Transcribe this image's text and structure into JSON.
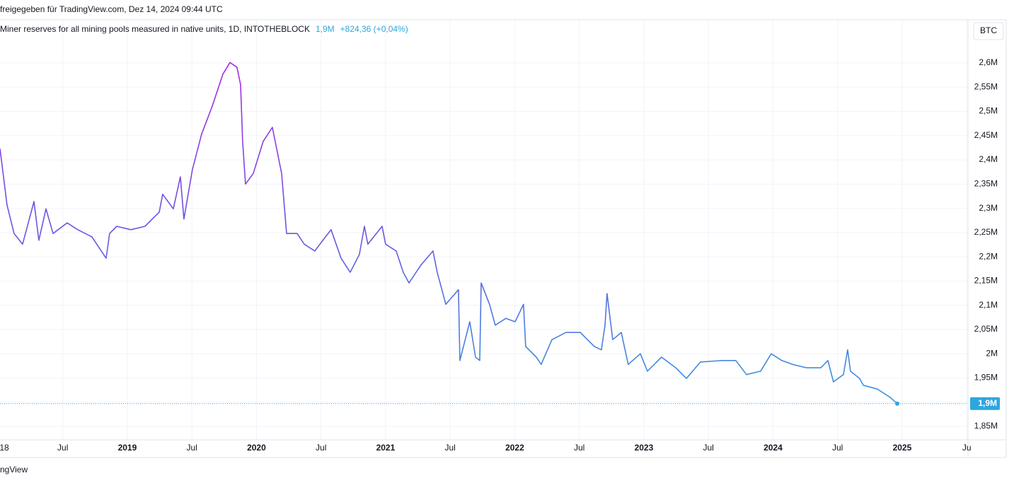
{
  "header": {
    "share_text": "freigegeben für TradingView.com, Dez 14, 2024 09:44 UTC",
    "currency": "BTC",
    "footer": "ngView"
  },
  "chart_data": {
    "type": "line",
    "title": "Miner reserves for all mining pools measured in native units, 1D, INTOTHEBLOCK",
    "last_value_text": "1,9M",
    "change_text": "+824,36 (+0,04%)",
    "last_value_label": "1,9M",
    "gradient_colors": [
      "#b51fe6",
      "#6b58e0",
      "#2ea6dc"
    ],
    "grid": true,
    "xlim": [
      2018.014,
      2025.51
    ],
    "xticks": [
      {
        "value": 2018,
        "label": "18"
      },
      {
        "value": 2018.5,
        "label": "Jul"
      },
      2019,
      {
        "value": 2019.5,
        "label": "Jul"
      },
      2020,
      {
        "value": 2020.5,
        "label": "Jul"
      },
      2021,
      {
        "value": 2021.5,
        "label": "Jul"
      },
      2022,
      {
        "value": 2022.5,
        "label": "Jul"
      },
      2023,
      {
        "value": 2023.5,
        "label": "Jul"
      },
      2024,
      {
        "value": 2024.5,
        "label": "Jul"
      },
      2025,
      {
        "value": 2025.5,
        "label": "Ju"
      }
    ],
    "ylim": [
      1822300,
      2689000
    ],
    "yticks": [
      {
        "value": 1850000,
        "label": "1,85M"
      },
      {
        "value": 1900000,
        "label": "1,9M"
      },
      {
        "value": 1950000,
        "label": "1,95M"
      },
      {
        "value": 2000000,
        "label": "2M"
      },
      {
        "value": 2050000,
        "label": "2,05M"
      },
      {
        "value": 2100000,
        "label": "2,1M"
      },
      {
        "value": 2150000,
        "label": "2,15M"
      },
      {
        "value": 2200000,
        "label": "2,2M"
      },
      {
        "value": 2250000,
        "label": "2,25M"
      },
      {
        "value": 2300000,
        "label": "2,3M"
      },
      {
        "value": 2350000,
        "label": "2,35M"
      },
      {
        "value": 2400000,
        "label": "2,4M"
      },
      {
        "value": 2450000,
        "label": "2,45M"
      },
      {
        "value": 2500000,
        "label": "2,5M"
      },
      {
        "value": 2550000,
        "label": "2,55M"
      },
      {
        "value": 2600000,
        "label": "2,6M"
      }
    ],
    "x": [
      2018.014,
      2018.068,
      2018.123,
      2018.189,
      2018.277,
      2018.315,
      2018.37,
      2018.425,
      2018.534,
      2018.616,
      2018.726,
      2018.836,
      2018.863,
      2018.918,
      2019.027,
      2019.137,
      2019.247,
      2019.274,
      2019.356,
      2019.411,
      2019.438,
      2019.504,
      2019.575,
      2019.658,
      2019.74,
      2019.795,
      2019.849,
      2019.877,
      2019.893,
      2019.915,
      2019.975,
      2020.052,
      2020.123,
      2020.195,
      2020.233,
      2020.315,
      2020.37,
      2020.452,
      2020.534,
      2020.578,
      2020.655,
      2020.726,
      2020.797,
      2020.836,
      2020.863,
      2020.973,
      2021.0,
      2021.082,
      2021.137,
      2021.181,
      2021.274,
      2021.367,
      2021.4,
      2021.466,
      2021.564,
      2021.575,
      2021.652,
      2021.696,
      2021.729,
      2021.74,
      2021.805,
      2021.849,
      2021.932,
      2022.003,
      2022.068,
      2022.085,
      2022.167,
      2022.205,
      2022.288,
      2022.397,
      2022.507,
      2022.616,
      2022.671,
      2022.699,
      2022.715,
      2022.759,
      2022.825,
      2022.879,
      2022.973,
      2023.027,
      2023.137,
      2023.247,
      2023.329,
      2023.438,
      2023.603,
      2023.712,
      2023.795,
      2023.904,
      2023.986,
      2024.068,
      2024.151,
      2024.26,
      2024.37,
      2024.425,
      2024.468,
      2024.545,
      2024.578,
      2024.6,
      2024.671,
      2024.699,
      2024.808,
      2024.907,
      2024.962
    ],
    "values": [
      2423000,
      2307000,
      2248000,
      2226000,
      2314000,
      2234000,
      2299000,
      2248000,
      2270000,
      2256000,
      2241000,
      2197000,
      2248000,
      2263000,
      2256000,
      2263000,
      2292000,
      2329000,
      2299000,
      2365000,
      2278000,
      2380000,
      2453000,
      2511000,
      2577000,
      2601000,
      2591000,
      2555000,
      2438000,
      2350000,
      2372000,
      2438000,
      2467000,
      2372000,
      2248000,
      2248000,
      2226000,
      2212000,
      2241000,
      2256000,
      2197000,
      2168000,
      2205000,
      2263000,
      2226000,
      2263000,
      2226000,
      2212000,
      2168000,
      2146000,
      2183000,
      2212000,
      2168000,
      2102000,
      2132000,
      1986000,
      2066000,
      1993000,
      1986000,
      2146000,
      2102000,
      2059000,
      2073000,
      2066000,
      2102000,
      2015000,
      1993000,
      1978000,
      2029000,
      2044000,
      2044000,
      2015000,
      2008000,
      2059000,
      2124000,
      2029000,
      2044000,
      1978000,
      2000000,
      1964000,
      1993000,
      1971000,
      1949000,
      1983000,
      1986000,
      1986000,
      1957000,
      1964000,
      2000000,
      1986000,
      1978000,
      1971000,
      1971000,
      1986000,
      1942000,
      1957000,
      2008000,
      1964000,
      1949000,
      1935000,
      1927000,
      1910000,
      1897000
    ]
  }
}
